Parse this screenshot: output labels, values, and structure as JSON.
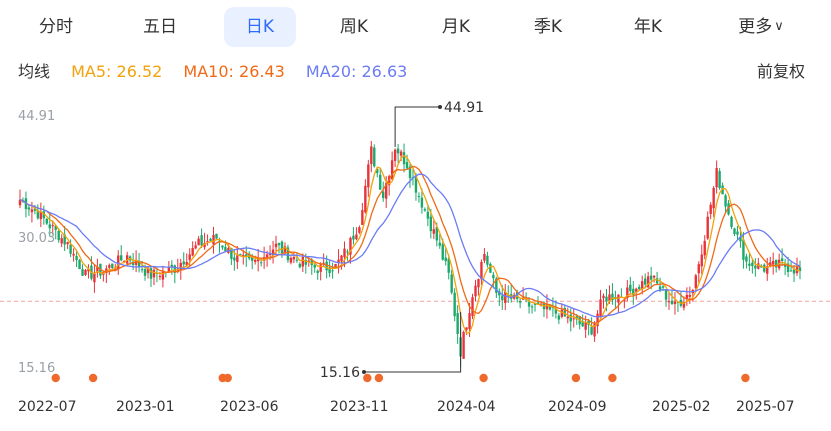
{
  "tabs": [
    {
      "label": "分时",
      "active": false
    },
    {
      "label": "五日",
      "active": false
    },
    {
      "label": "日K",
      "active": true
    },
    {
      "label": "周K",
      "active": false
    },
    {
      "label": "月K",
      "active": false
    },
    {
      "label": "季K",
      "active": false
    },
    {
      "label": "年K",
      "active": false
    },
    {
      "label": "更多",
      "active": false
    }
  ],
  "legend": {
    "title": "均线",
    "ma5": "MA5: 26.52",
    "ma10": "MA10: 26.43",
    "ma20": "MA20: 26.63",
    "adjust": "前复权"
  },
  "colors": {
    "accent": "#2f6bff",
    "ma5": "#f2a20c",
    "ma10": "#f06a16",
    "ma20": "#6b7cf6",
    "up": "#e8333a",
    "down": "#1aa86b",
    "dot": "#f0692c",
    "dash": "#f3a3a3"
  },
  "chart_data": {
    "type": "candlestick",
    "y_high_label": "44.91",
    "y_mid_label": "30.03",
    "y_low_label": "15.16",
    "max_annotation": "44.91",
    "min_annotation": "15.16",
    "x_labels": [
      "2022-07",
      "2023-01",
      "2023-06",
      "2023-11",
      "2024-04",
      "2024-09",
      "2025-02",
      "2025-07"
    ],
    "ylim": [
      15.16,
      44.91
    ],
    "reference_value": 23.1,
    "last_close": 26.5,
    "price_path": [
      [
        0,
        34.5
      ],
      [
        6,
        33.0
      ],
      [
        16,
        29.5
      ],
      [
        22,
        26.0
      ],
      [
        28,
        26.5
      ],
      [
        36,
        28.2
      ],
      [
        44,
        26.0
      ],
      [
        52,
        26.8
      ],
      [
        60,
        29.5
      ],
      [
        66,
        30.2
      ],
      [
        72,
        28.0
      ],
      [
        78,
        27.3
      ],
      [
        86,
        29.3
      ],
      [
        94,
        27.5
      ],
      [
        100,
        26.8
      ],
      [
        106,
        27.0
      ],
      [
        110,
        29.0
      ],
      [
        114,
        32.0
      ],
      [
        118,
        40.0
      ],
      [
        122,
        35.0
      ],
      [
        126,
        40.5
      ],
      [
        130,
        38.5
      ],
      [
        134,
        35.0
      ],
      [
        140,
        30.0
      ],
      [
        144,
        26.0
      ],
      [
        148,
        17.5
      ],
      [
        152,
        24.0
      ],
      [
        156,
        28.5
      ],
      [
        160,
        24.0
      ],
      [
        164,
        23.5
      ],
      [
        172,
        22.5
      ],
      [
        180,
        21.8
      ],
      [
        188,
        20.5
      ],
      [
        192,
        20.0
      ],
      [
        196,
        23.5
      ],
      [
        204,
        24.0
      ],
      [
        212,
        25.8
      ],
      [
        220,
        22.5
      ],
      [
        226,
        24.5
      ],
      [
        230,
        30.5
      ],
      [
        234,
        37.5
      ],
      [
        238,
        33.0
      ],
      [
        244,
        27.5
      ],
      [
        250,
        26.8
      ],
      [
        256,
        27.2
      ],
      [
        262,
        26.5
      ]
    ],
    "event_dots_x": [
      "2022-07",
      "2022-09",
      "2023-06",
      "2023-06",
      "2023-11",
      "2023-12",
      "2024-05",
      "2024-09",
      "2024-10",
      "2025-05"
    ],
    "event_dot_positions": [
      0.067,
      0.112,
      0.268,
      0.274,
      0.442,
      0.456,
      0.582,
      0.693,
      0.737,
      0.897
    ]
  }
}
